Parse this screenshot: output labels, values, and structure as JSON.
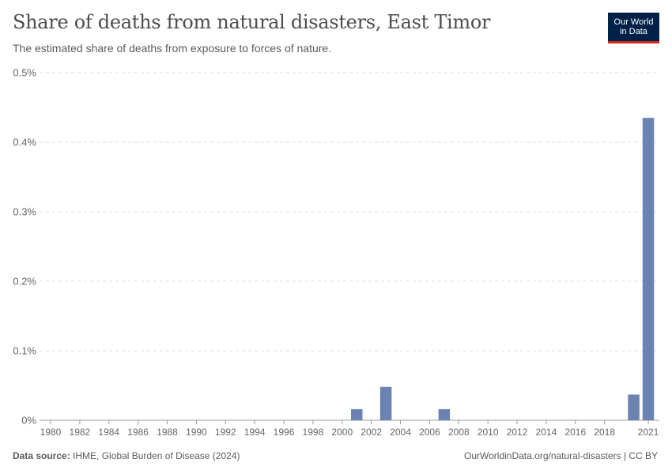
{
  "header": {
    "title": "Share of deaths from natural disasters, East Timor",
    "subtitle": "The estimated share of deaths from exposure to forces of nature.",
    "logo_line1": "Our World",
    "logo_line2": "in Data"
  },
  "footer": {
    "source_label": "Data source:",
    "source_text": "IHME, Global Burden of Disease (2024)",
    "url_text": "OurWorldinData.org/natural-disasters | CC BY"
  },
  "colors": {
    "bar": "#6a83b0",
    "grid": "#dddddd",
    "axis": "#999999"
  },
  "chart_data": {
    "type": "bar",
    "title": "Share of deaths from natural disasters, East Timor",
    "xlabel": "",
    "ylabel": "",
    "ylim": [
      0,
      0.5
    ],
    "y_unit": "%",
    "yticks": [
      "0%",
      "0.1%",
      "0.2%",
      "0.3%",
      "0.4%",
      "0.5%"
    ],
    "xticks": [
      "1980",
      "1982",
      "1984",
      "1986",
      "1988",
      "1990",
      "1992",
      "1994",
      "1996",
      "1998",
      "2000",
      "2002",
      "2004",
      "2006",
      "2008",
      "2010",
      "2012",
      "2014",
      "2016",
      "2018",
      "2021"
    ],
    "x_range": [
      1980,
      2021
    ],
    "grid": true,
    "bars": [
      {
        "year": 2001,
        "value": 0.016
      },
      {
        "year": 2003,
        "value": 0.048
      },
      {
        "year": 2007,
        "value": 0.016
      },
      {
        "year": 2020,
        "value": 0.037
      },
      {
        "year": 2021,
        "value": 0.435
      }
    ]
  }
}
